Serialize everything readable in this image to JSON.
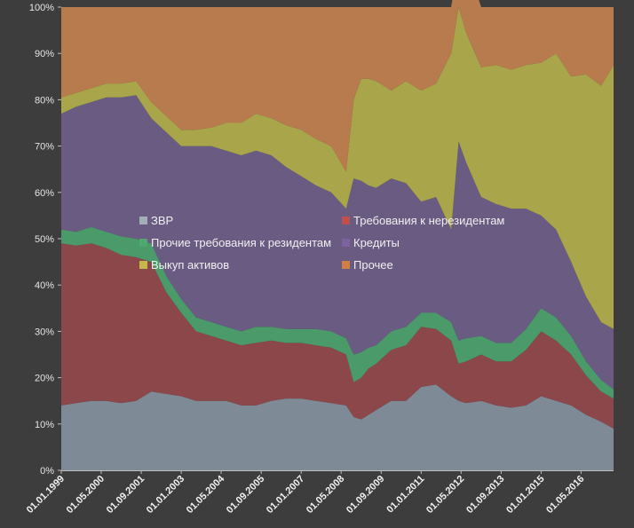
{
  "chart_data": {
    "type": "area",
    "stacked": true,
    "normalized": true,
    "title": "",
    "xlabel": "",
    "ylabel": "",
    "ylim": [
      0,
      100
    ],
    "grid": false,
    "legend_placement": "center-left, inside plot",
    "y_tick_labels": [
      "0%",
      "10%",
      "20%",
      "30%",
      "40%",
      "50%",
      "60%",
      "70%",
      "80%",
      "90%",
      "100%"
    ],
    "x_tick_labels": [
      "01.01.1999",
      "01.05.2000",
      "01.09.2001",
      "01.01.2003",
      "01.05.2004",
      "01.09.2005",
      "01.01.2007",
      "01.05.2008",
      "01.09.2009",
      "01.01.2011",
      "01.05.2012",
      "01.09.2013",
      "01.01.2015",
      "01.05.2016"
    ],
    "x_ticks": [
      "1999-01-01",
      "2000-05-01",
      "2001-09-01",
      "2003-01-01",
      "2004-05-01",
      "2005-09-01",
      "2007-01-01",
      "2008-05-01",
      "2009-09-01",
      "2011-01-01",
      "2012-05-01",
      "2013-09-01",
      "2015-01-01",
      "2016-05-01"
    ],
    "x": [
      "1999-01-01",
      "1999-07-01",
      "2000-01-01",
      "2000-07-01",
      "2001-01-01",
      "2001-07-01",
      "2002-01-01",
      "2002-07-01",
      "2003-01-01",
      "2003-07-01",
      "2004-01-01",
      "2004-07-01",
      "2005-01-01",
      "2005-07-01",
      "2006-01-01",
      "2006-07-01",
      "2007-01-01",
      "2007-07-01",
      "2008-01-01",
      "2008-07-01",
      "2008-10-01",
      "2009-01-01",
      "2009-04-01",
      "2009-07-01",
      "2010-01-01",
      "2010-07-01",
      "2011-01-01",
      "2011-07-01",
      "2012-01-01",
      "2012-04-01",
      "2012-07-01",
      "2013-01-01",
      "2013-07-01",
      "2014-01-01",
      "2014-07-01",
      "2015-01-01",
      "2015-07-01",
      "2016-01-01",
      "2016-07-01",
      "2017-01-01",
      "2017-06-01"
    ],
    "series": [
      {
        "name": "ЗВР",
        "color": "#7f8a97",
        "values": [
          14,
          14.5,
          15,
          15,
          14.5,
          15,
          17,
          16.5,
          16,
          15,
          15,
          15,
          14,
          14,
          15,
          15.5,
          15.5,
          15,
          14.5,
          14,
          11.5,
          11,
          12,
          13,
          15,
          15,
          18,
          18.5,
          16,
          15,
          14.5,
          15,
          14,
          13.5,
          14,
          16,
          15,
          14,
          12,
          10.5,
          9
        ]
      },
      {
        "name": "Требования к нерезидентам",
        "color": "#8b4749",
        "values": [
          35,
          34,
          34,
          33,
          32,
          31,
          28,
          22,
          18,
          15,
          14,
          13,
          13,
          13.5,
          13,
          12,
          12,
          12,
          12,
          11,
          7.5,
          9,
          10,
          10,
          11,
          12,
          13,
          12,
          12,
          8,
          9,
          10,
          9.5,
          10,
          12,
          14,
          13,
          11,
          8.5,
          6.5,
          6.5
        ]
      },
      {
        "name": "Прочие требования к резидентам",
        "color": "#4a9a6a",
        "values": [
          3,
          3,
          3.5,
          3.5,
          4,
          4,
          4,
          3.5,
          3,
          3,
          3,
          3,
          3,
          3.5,
          3,
          3,
          3,
          3.5,
          3.5,
          3.5,
          6,
          5.5,
          4.5,
          4,
          4,
          4,
          3,
          3.5,
          4,
          5,
          5,
          4,
          4,
          4,
          4.5,
          5,
          5,
          4,
          3,
          2.5,
          2
        ]
      },
      {
        "name": "Кредиты",
        "color": "#6a5b82",
        "values": [
          25,
          27,
          27,
          29,
          30,
          31,
          27,
          31,
          33,
          37,
          38,
          38,
          38,
          38,
          37,
          35,
          33,
          31,
          30,
          28,
          38,
          37,
          35,
          34,
          33,
          31,
          24,
          25,
          20,
          43,
          38,
          30,
          30,
          29,
          26,
          20,
          19,
          16,
          14,
          12.5,
          13
        ]
      },
      {
        "name": "Выкуп активов",
        "color": "#a8a54a",
        "values": [
          3.5,
          3,
          3,
          3,
          3,
          3,
          3.5,
          3.5,
          3.5,
          3.5,
          4,
          6,
          7,
          8,
          8,
          9,
          10,
          10,
          10,
          8,
          17,
          22,
          23,
          23,
          19,
          22,
          24,
          24.5,
          38,
          29,
          28,
          28,
          30,
          30,
          31,
          33,
          38,
          40,
          48,
          51,
          57
        ]
      },
      {
        "name": "Прочее",
        "color": "#b87b4e",
        "values": [
          19.5,
          18.5,
          17.5,
          16.5,
          16.5,
          16,
          20.5,
          23.5,
          26.5,
          26.5,
          26,
          25,
          25,
          23,
          24,
          25.5,
          26.5,
          28.5,
          30,
          35.5,
          20,
          15.5,
          15.5,
          16,
          18,
          16,
          18,
          16.5,
          10,
          10,
          15.5,
          13,
          12.5,
          13.5,
          12.5,
          12,
          10,
          15,
          14.5,
          17,
          12.5
        ]
      }
    ]
  },
  "legend": [
    {
      "label": "ЗВР",
      "color": "#a3adb8"
    },
    {
      "label": "Требования к нерезидентам",
      "color": "#c0504d"
    },
    {
      "label": "Прочие требования к резидентам",
      "color": "#4fa86f"
    },
    {
      "label": "Кредиты",
      "color": "#7b63a0"
    },
    {
      "label": "Выкуп активов",
      "color": "#c4b64a"
    },
    {
      "label": "Прочее",
      "color": "#d08045"
    }
  ],
  "colors": {
    "background": "#3d3d3d",
    "axis": "#bfbfbf"
  }
}
